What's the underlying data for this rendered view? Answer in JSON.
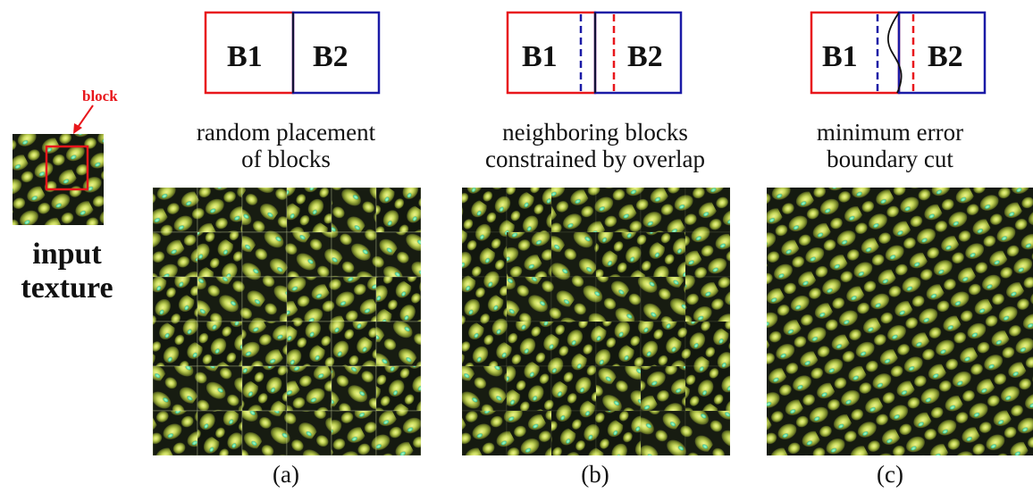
{
  "input": {
    "block_label": "block",
    "title_line1": "input",
    "title_line2": "texture"
  },
  "panels": [
    {
      "id": "a",
      "diagram": {
        "left_label": "B1",
        "right_label": "B2",
        "overlap": "none"
      },
      "caption_line1": "random placement",
      "caption_line2": "of blocks",
      "sub_label": "(a)"
    },
    {
      "id": "b",
      "diagram": {
        "left_label": "B1",
        "right_label": "B2",
        "overlap": "straight"
      },
      "caption_line1": "neighboring blocks",
      "caption_line2": "constrained by overlap",
      "sub_label": "(b)"
    },
    {
      "id": "c",
      "diagram": {
        "left_label": "B1",
        "right_label": "B2",
        "overlap": "cut"
      },
      "caption_line1": "minimum error",
      "caption_line2": "boundary cut",
      "sub_label": "(c)"
    }
  ],
  "colors": {
    "block1_border": "#e8161b",
    "block2_border": "#1a1aa6",
    "texture_dark": "#15190f",
    "texture_cell": "#9fae3c",
    "texture_highlight": "#e3f08a",
    "texture_cyan": "#3fe3b5"
  }
}
